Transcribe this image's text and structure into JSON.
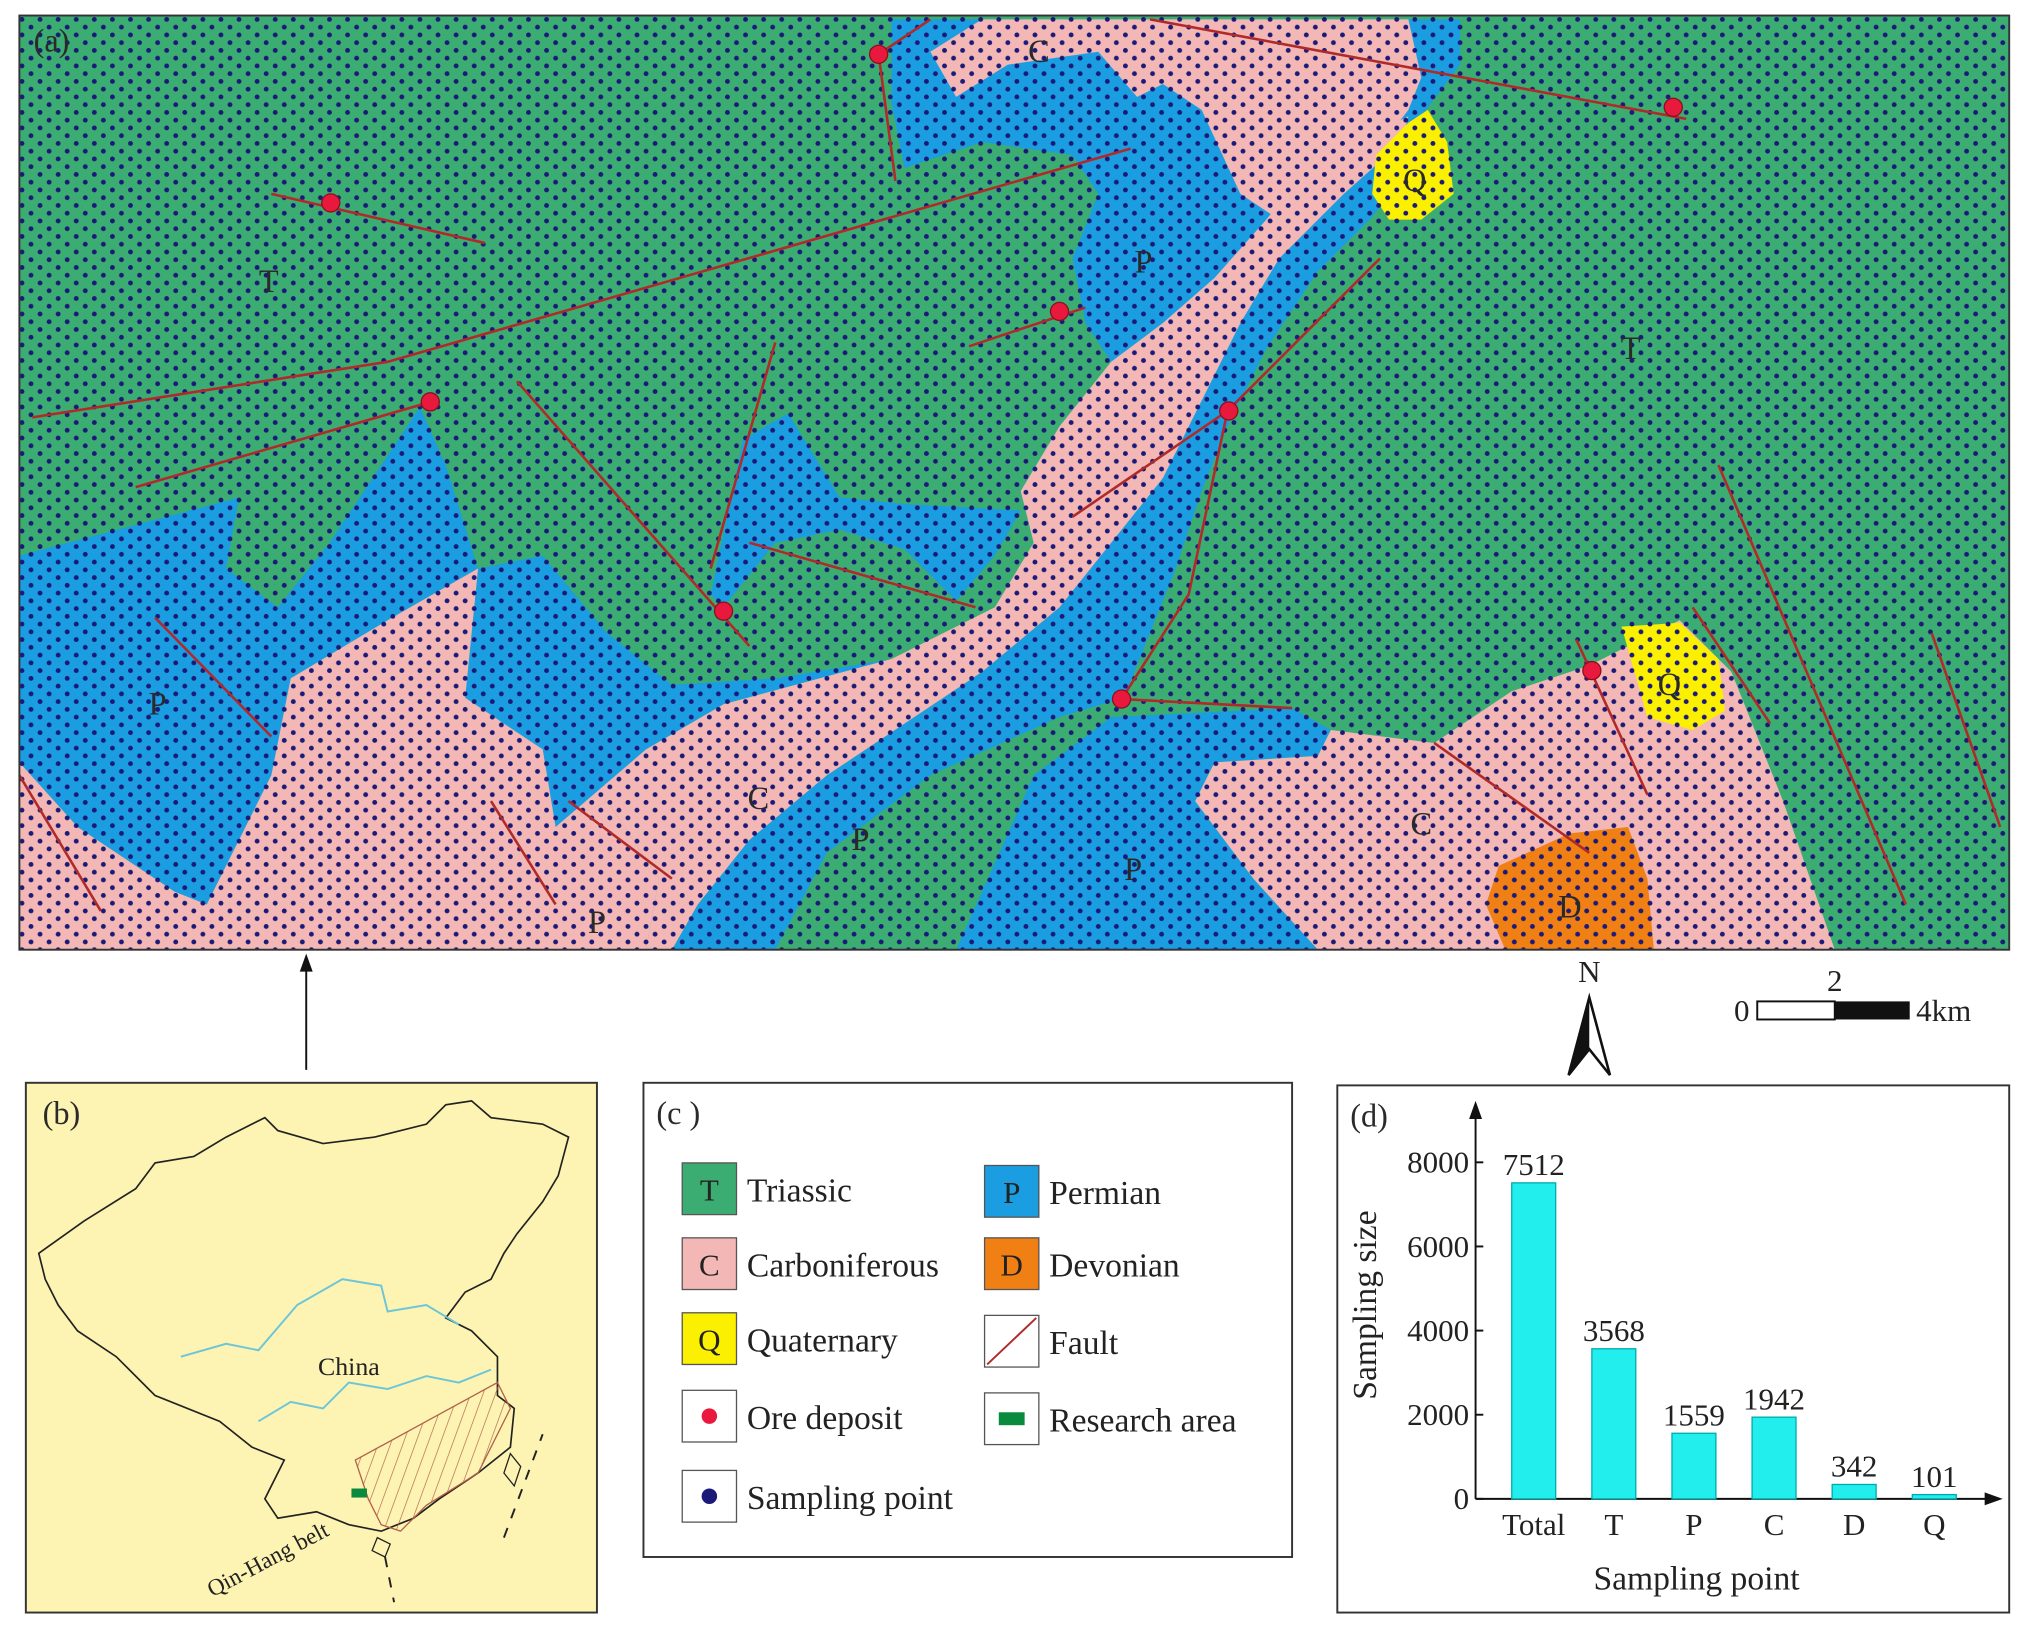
{
  "map": {
    "label": "(a)",
    "labels": [
      "T",
      "T",
      "P",
      "P",
      "P",
      "P",
      "P",
      "C",
      "C",
      "C",
      "Q",
      "Q",
      "D"
    ],
    "north": "N",
    "scale_ticks": [
      "0",
      "2",
      "4km"
    ]
  },
  "inset": {
    "label": "(b)",
    "country": "China",
    "belt": "Qin-Hang belt"
  },
  "legend": {
    "label": "(c )",
    "items": [
      {
        "symbol": "T",
        "name": "Triassic"
      },
      {
        "symbol": "P",
        "name": "Permian"
      },
      {
        "symbol": "C",
        "name": "Carboniferous"
      },
      {
        "symbol": "D",
        "name": "Devonian"
      },
      {
        "symbol": "Q",
        "name": "Quaternary"
      },
      {
        "name": "Fault"
      },
      {
        "name": "Ore deposit"
      },
      {
        "name": "Research area"
      },
      {
        "name": "Sampling point"
      }
    ]
  },
  "chart_data": {
    "type": "bar",
    "label": "(d)",
    "xlabel": "Sampling point",
    "ylabel": "Sampling size",
    "categories": [
      "Total",
      "T",
      "P",
      "C",
      "D",
      "Q"
    ],
    "values": [
      7512,
      3568,
      1559,
      1942,
      342,
      101
    ],
    "color": "#22eeee",
    "ylim": [
      0,
      9000
    ],
    "yticks": [
      0,
      2000,
      4000,
      6000,
      8000
    ]
  }
}
